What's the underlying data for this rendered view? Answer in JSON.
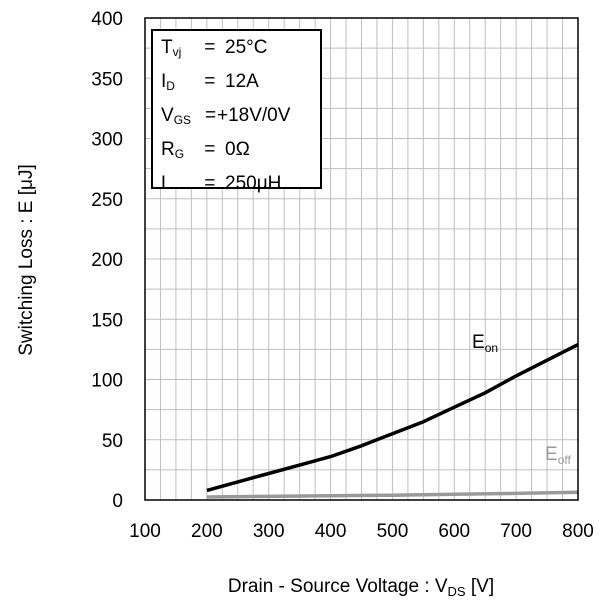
{
  "chart_data": {
    "type": "line",
    "xlabel": {
      "main": "Drain - Source Voltage : V",
      "sub": "DS",
      "unit": " [V]"
    },
    "ylabel": "Switching Loss : E [μJ]",
    "xlim": [
      100,
      800
    ],
    "ylim": [
      0,
      400
    ],
    "xticks": [
      "100",
      "200",
      "300",
      "400",
      "500",
      "600",
      "700",
      "800"
    ],
    "yticks": [
      "0",
      "50",
      "100",
      "150",
      "200",
      "250",
      "300",
      "350",
      "400"
    ],
    "grid": true,
    "series": [
      {
        "name_main": "E",
        "name_sub": "on",
        "color": "#000000",
        "x": [
          200,
          250,
          300,
          350,
          400,
          450,
          500,
          550,
          600,
          650,
          700,
          750,
          800
        ],
        "values": [
          8,
          15,
          22,
          29,
          36,
          45,
          55,
          65,
          77,
          89,
          103,
          116,
          129
        ]
      },
      {
        "name_main": "E",
        "name_sub": "off",
        "color": "#999999",
        "x": [
          200,
          300,
          400,
          500,
          600,
          700,
          800
        ],
        "values": [
          2.5,
          3,
          3.5,
          4,
          4.7,
          5.5,
          6.5
        ]
      }
    ],
    "conditions": [
      {
        "sym": "T",
        "sub": "vj",
        "eq": " =",
        "val": "25°C"
      },
      {
        "sym": "I",
        "sub": "D",
        "eq": " =",
        "val": "12A"
      },
      {
        "sym": "V",
        "sub": "GS",
        "eq": "=",
        "val": "+18V/0V"
      },
      {
        "sym": "R",
        "sub": "G",
        "eq": " =",
        "val": "0Ω"
      },
      {
        "sym": "L",
        "sub": "",
        "eq": " =",
        "val": "250μH"
      }
    ]
  }
}
